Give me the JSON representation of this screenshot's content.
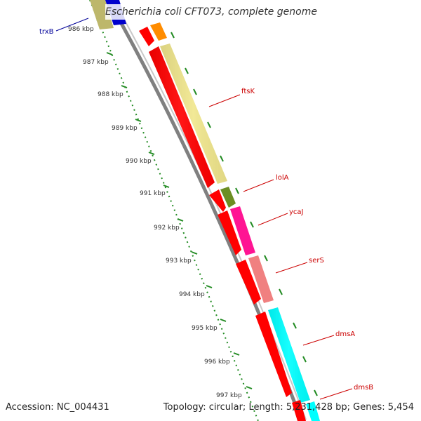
{
  "title": "Escherichia coli CFT073, complete genome",
  "footer": {
    "accession_label": "Accession:",
    "accession": "NC_004431",
    "topology_label": "Topology:",
    "topology": "circular",
    "length_label": "Length:",
    "length": "5,231,428 bp",
    "genes_label": "Genes:",
    "genes": "5,454"
  },
  "ruler_ticks": [
    "986 kbp",
    "987 kbp",
    "988 kbp",
    "989 kbp",
    "990 kbp",
    "991 kbp",
    "992 kbp",
    "993 kbp",
    "994 kbp",
    "995 kbp",
    "996 kbp",
    "997 kbp"
  ],
  "gene_labels": {
    "trxB": "trxB",
    "ftsK": "ftsK",
    "lolA": "lolA",
    "ycaJ": "ycaJ",
    "serS": "serS",
    "dmsA": "dmsA",
    "dmsB": "dmsB"
  },
  "colors": {
    "cds_forward": "#ff0000",
    "ftsK": "#f0e68c",
    "lolA": "#6b8e23",
    "ycaJ": "#ff1493",
    "serS": "#f08080",
    "dmsA": "#00ffff",
    "trxB": "#0000cd",
    "backbone": "#808080",
    "ruler": "#228b22",
    "label_forward": "#cc0000",
    "label_reverse": "#000099"
  }
}
